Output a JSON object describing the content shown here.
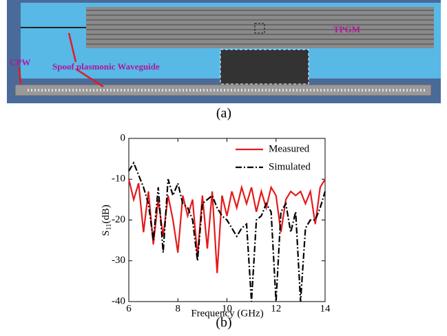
{
  "photo": {
    "labels": [
      "TPGM",
      "CPW",
      "Spoof plasmonic Waveguide"
    ],
    "caption": "(a)"
  },
  "chart_data": {
    "type": "line",
    "caption": "(b)",
    "x_label": "Frequency (GHz)",
    "y_label": [
      "S",
      "11",
      "(dB)"
    ],
    "x": [
      6,
      6.2,
      6.4,
      6.6,
      6.8,
      7,
      7.2,
      7.4,
      7.6,
      7.8,
      8,
      8.2,
      8.4,
      8.6,
      8.8,
      9,
      9.2,
      9.4,
      9.6,
      9.8,
      10,
      10.2,
      10.4,
      10.6,
      10.8,
      11,
      11.2,
      11.4,
      11.6,
      11.8,
      12,
      12.2,
      12.4,
      12.6,
      12.8,
      13,
      13.2,
      13.4,
      13.6,
      13.8,
      14
    ],
    "series": [
      {
        "name": "Measured",
        "color": "#e41a1c",
        "line_style": "solid",
        "values": [
          -10,
          -15,
          -11,
          -23,
          -13,
          -26,
          -15,
          -24,
          -14,
          -20,
          -28,
          -14,
          -19,
          -15,
          -29,
          -14,
          -27,
          -13,
          -33,
          -14,
          -19,
          -13,
          -17,
          -12,
          -16,
          -12,
          -18,
          -13,
          -17,
          -12,
          -14,
          -23,
          -15,
          -13,
          -14,
          -13,
          -16,
          -13,
          -21,
          -12,
          -10
        ]
      },
      {
        "name": "Simulated",
        "color": "#000000",
        "line_style": "dash-dot",
        "values": [
          -8,
          -6,
          -9,
          -12,
          -16,
          -25,
          -12,
          -28,
          -10,
          -14,
          -11,
          -16,
          -17,
          -20,
          -30,
          -16,
          -15,
          -14,
          -17,
          -19,
          -20,
          -22,
          -24,
          -22,
          -21,
          -40,
          -20,
          -19,
          -16,
          -18,
          -40,
          -18,
          -16,
          -23,
          -18,
          -40,
          -22,
          -20,
          -20,
          -17,
          -13
        ]
      }
    ],
    "xlim": [
      6,
      14
    ],
    "xticks": [
      6,
      8,
      10,
      12,
      14
    ],
    "ylim": [
      -40,
      0
    ],
    "yticks": [
      0,
      -10,
      -20,
      -30,
      -40
    ],
    "legend": "upper-right"
  }
}
